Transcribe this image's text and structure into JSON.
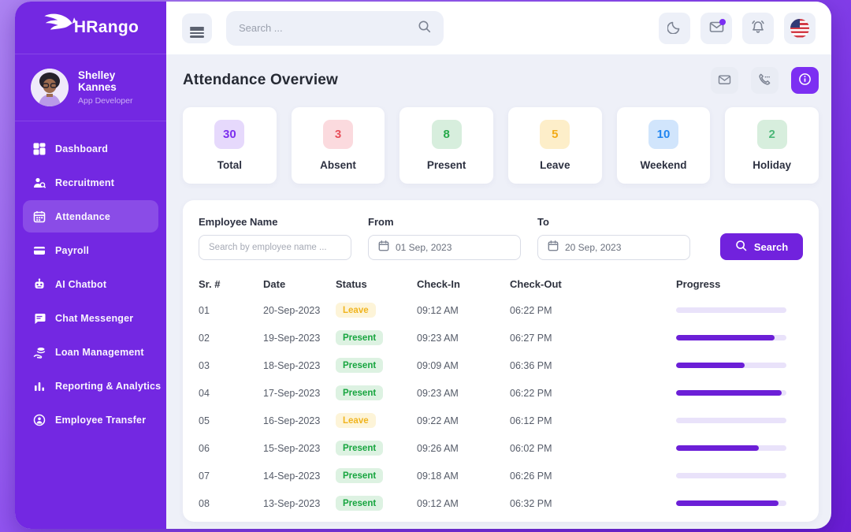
{
  "brand": {
    "name": "HRango"
  },
  "topbar": {
    "search_placeholder": "Search ..."
  },
  "user": {
    "name": "Shelley Kannes",
    "role": "App Developer"
  },
  "sidebar": {
    "items": [
      {
        "label": "Dashboard",
        "icon": "dashboard-icon",
        "active": false
      },
      {
        "label": "Recruitment",
        "icon": "recruitment-icon",
        "active": false
      },
      {
        "label": "Attendance",
        "icon": "attendance-icon",
        "active": true
      },
      {
        "label": "Payroll",
        "icon": "payroll-icon",
        "active": false
      },
      {
        "label": "AI Chatbot",
        "icon": "ai-chatbot-icon",
        "active": false
      },
      {
        "label": "Chat Messenger",
        "icon": "chat-messenger-icon",
        "active": false
      },
      {
        "label": "Loan Management",
        "icon": "loan-management-icon",
        "active": false
      },
      {
        "label": "Reporting & Analytics",
        "icon": "reporting-analytics-icon",
        "active": false
      },
      {
        "label": "Employee Transfer",
        "icon": "employee-transfer-icon",
        "active": false
      }
    ]
  },
  "header": {
    "title": "Attendance Overview"
  },
  "stats": [
    {
      "label": "Total",
      "value": "30",
      "bg": "#e6d9fc",
      "color": "#7c30ee"
    },
    {
      "label": "Absent",
      "value": "3",
      "bg": "#fbdade",
      "color": "#e8505b"
    },
    {
      "label": "Present",
      "value": "8",
      "bg": "#d7eedd",
      "color": "#27aa4b"
    },
    {
      "label": "Leave",
      "value": "5",
      "bg": "#fdeec9",
      "color": "#f2ab18"
    },
    {
      "label": "Weekend",
      "value": "10",
      "bg": "#d1e5fc",
      "color": "#2286f0"
    },
    {
      "label": "Holiday",
      "value": "2",
      "bg": "#d7eedd",
      "color": "#4cb878"
    }
  ],
  "filters": {
    "employee_label": "Employee Name",
    "employee_placeholder": "Search by employee name ...",
    "from_label": "From",
    "from_value": "01 Sep, 2023",
    "to_label": "To",
    "to_value": "20 Sep, 2023",
    "search_label": "Search"
  },
  "table": {
    "columns": [
      "Sr. #",
      "Date",
      "Status",
      "Check-In",
      "Check-Out",
      "Progress"
    ],
    "rows": [
      {
        "sr": "01",
        "date": "20-Sep-2023",
        "status": "Leave",
        "check_in": "09:12 AM",
        "check_out": "06:22 PM",
        "progress_pct": 0
      },
      {
        "sr": "02",
        "date": "19-Sep-2023",
        "status": "Present",
        "check_in": "09:23 AM",
        "check_out": "06:27 PM",
        "progress_pct": 89
      },
      {
        "sr": "03",
        "date": "18-Sep-2023",
        "status": "Present",
        "check_in": "09:09 AM",
        "check_out": "06:36 PM",
        "progress_pct": 62
      },
      {
        "sr": "04",
        "date": "17-Sep-2023",
        "status": "Present",
        "check_in": "09:23 AM",
        "check_out": "06:22 PM",
        "progress_pct": 96
      },
      {
        "sr": "05",
        "date": "16-Sep-2023",
        "status": "Leave",
        "check_in": "09:22 AM",
        "check_out": "06:12 PM",
        "progress_pct": 0
      },
      {
        "sr": "06",
        "date": "15-Sep-2023",
        "status": "Present",
        "check_in": "09:26 AM",
        "check_out": "06:02 PM",
        "progress_pct": 75
      },
      {
        "sr": "07",
        "date": "14-Sep-2023",
        "status": "Present",
        "check_in": "09:18 AM",
        "check_out": "06:26 PM",
        "progress_pct": 0
      },
      {
        "sr": "08",
        "date": "13-Sep-2023",
        "status": "Present",
        "check_in": "09:12 AM",
        "check_out": "06:32 PM",
        "progress_pct": 93
      }
    ]
  },
  "colors": {
    "sidebar": "#7328e2",
    "primary": "#7122dd",
    "info_button": "#7c2ff2",
    "progress_fill": "#6c1fd7",
    "progress_track": "#e9e2fa",
    "main_bg": "#eef0f8"
  }
}
